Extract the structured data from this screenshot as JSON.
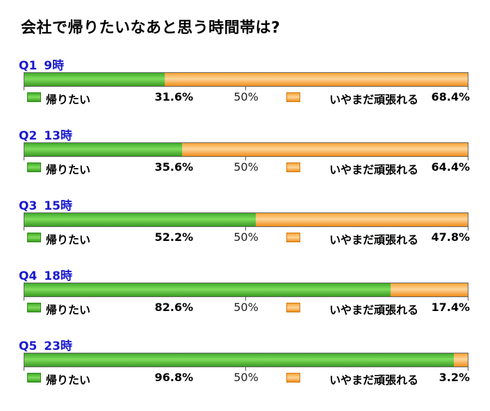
{
  "title": "会社で帰りたいなあと思う時間帯は?",
  "legend": {
    "a": "帰りたい",
    "b": "いやまだ頑張れる"
  },
  "midpoint_label": "50%",
  "colors": {
    "a": "#4cbb33",
    "b": "#f7a73c",
    "question": "#1a1ad0"
  },
  "chart_data": [
    {
      "type": "bar",
      "stacked": true,
      "orientation": "horizontal",
      "title": "Q1 9時",
      "categories": [
        "Q1 9時"
      ],
      "series": [
        {
          "name": "帰りたい",
          "values": [
            31.6
          ]
        },
        {
          "name": "いやまだ頑張れる",
          "values": [
            68.4
          ]
        }
      ],
      "labels": [
        "31.6%",
        "68.4%"
      ],
      "xlim": [
        0,
        100
      ]
    },
    {
      "type": "bar",
      "stacked": true,
      "orientation": "horizontal",
      "title": "Q2 13時",
      "categories": [
        "Q2 13時"
      ],
      "series": [
        {
          "name": "帰りたい",
          "values": [
            35.6
          ]
        },
        {
          "name": "いやまだ頑張れる",
          "values": [
            64.4
          ]
        }
      ],
      "labels": [
        "35.6%",
        "64.4%"
      ],
      "xlim": [
        0,
        100
      ]
    },
    {
      "type": "bar",
      "stacked": true,
      "orientation": "horizontal",
      "title": "Q3 15時",
      "categories": [
        "Q3 15時"
      ],
      "series": [
        {
          "name": "帰りたい",
          "values": [
            52.2
          ]
        },
        {
          "name": "いやまだ頑張れる",
          "values": [
            47.8
          ]
        }
      ],
      "labels": [
        "52.2%",
        "47.8%"
      ],
      "xlim": [
        0,
        100
      ]
    },
    {
      "type": "bar",
      "stacked": true,
      "orientation": "horizontal",
      "title": "Q4 18時",
      "categories": [
        "Q4 18時"
      ],
      "series": [
        {
          "name": "帰りたい",
          "values": [
            82.6
          ]
        },
        {
          "name": "いやまだ頑張れる",
          "values": [
            17.4
          ]
        }
      ],
      "labels": [
        "82.6%",
        "17.4%"
      ],
      "xlim": [
        0,
        100
      ]
    },
    {
      "type": "bar",
      "stacked": true,
      "orientation": "horizontal",
      "title": "Q5 23時",
      "categories": [
        "Q5 23時"
      ],
      "series": [
        {
          "name": "帰りたい",
          "values": [
            96.8
          ]
        },
        {
          "name": "いやまだ頑張れる",
          "values": [
            3.2
          ]
        }
      ],
      "labels": [
        "96.8%",
        "3.2%"
      ],
      "xlim": [
        0,
        100
      ]
    }
  ],
  "questions": [
    {
      "id": "Q1",
      "time": "9時"
    },
    {
      "id": "Q2",
      "time": "13時"
    },
    {
      "id": "Q3",
      "time": "15時"
    },
    {
      "id": "Q4",
      "time": "18時"
    },
    {
      "id": "Q5",
      "time": "23時"
    }
  ]
}
